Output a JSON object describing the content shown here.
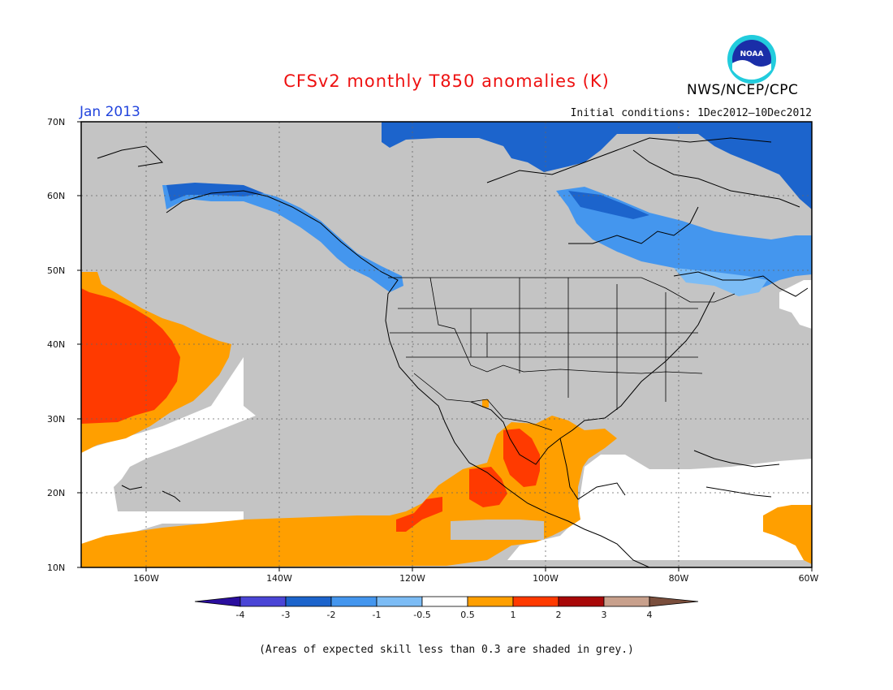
{
  "header": {
    "title": "CFSv2 monthly T850 anomalies (K)",
    "agency": "NWS/NCEP/CPC",
    "logo_text": "NOAA",
    "period": "Jan 2013",
    "initial_conditions": "Initial conditions: 1Dec2012–10Dec2012"
  },
  "map": {
    "lat_labels": [
      "70N",
      "60N",
      "50N",
      "40N",
      "30N",
      "20N",
      "10N"
    ],
    "lon_labels": [
      "160W",
      "140W",
      "120W",
      "100W",
      "80W",
      "60W"
    ],
    "colors": {
      "grey": "#c4c4c4",
      "white": "#ffffff",
      "neg1": "#7cbcf5",
      "neg2": "#4496ee",
      "neg3": "#1c64cc",
      "pos1": "#ff9f00",
      "pos2": "#ff3a00"
    }
  },
  "colorbar": {
    "labels": [
      "-4",
      "-3",
      "-2",
      "-1",
      "-0.5",
      "0.5",
      "1",
      "2",
      "3",
      "4"
    ],
    "colors": [
      "#2a0e9e",
      "#4a45d6",
      "#1c64cc",
      "#4496ee",
      "#7cbcf5",
      "#ffffff",
      "#ff9f00",
      "#ff3a00",
      "#a80808",
      "#c8a08c",
      "#7a4e3c"
    ]
  },
  "footnote": "(Areas of expected skill less than 0.3 are shaded in grey.)"
}
